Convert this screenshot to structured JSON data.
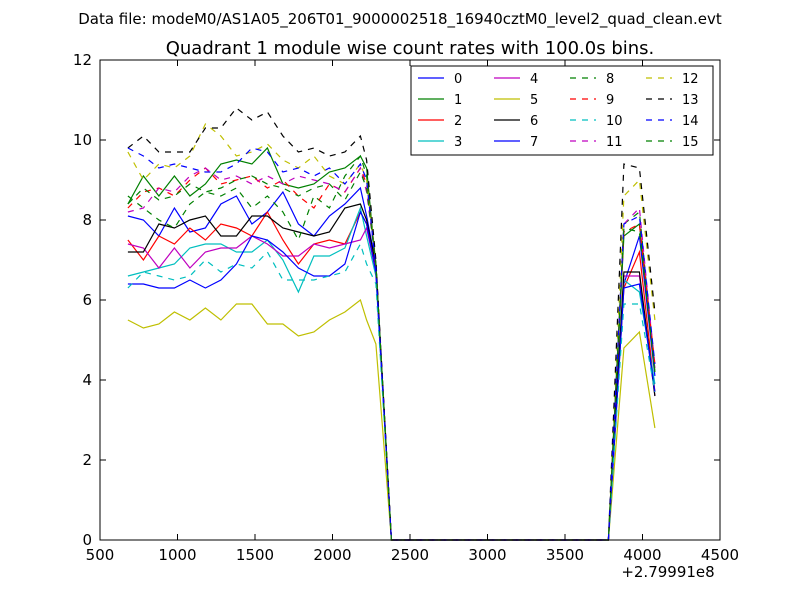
{
  "suptitle": "Data file: modeM0/AS1A05_206T01_9000002518_16940cztM0_level2_quad_clean.evt",
  "chart_data": {
    "type": "line",
    "title": "Quadrant 1 module wise count rates with 100.0s bins.",
    "xlabel": "",
    "ylabel": "",
    "x_offset_label": "+2.79991e8",
    "xlim": [
      500,
      4500
    ],
    "ylim": [
      0,
      12
    ],
    "xticks": [
      500,
      1000,
      1500,
      2000,
      2500,
      3000,
      3500,
      4000,
      4500
    ],
    "yticks": [
      0,
      2,
      4,
      6,
      8,
      10,
      12
    ],
    "x": [
      680,
      780,
      880,
      980,
      1080,
      1180,
      1280,
      1380,
      1480,
      1580,
      1680,
      1780,
      1880,
      1980,
      2080,
      2180,
      2220,
      2280,
      2380,
      2480,
      2580,
      2680,
      2780,
      2880,
      2980,
      3080,
      3180,
      3280,
      3380,
      3480,
      3580,
      3680,
      3780,
      3880,
      3980,
      4080
    ],
    "legend": {
      "location": "upper-right",
      "columns": 4
    },
    "series": [
      {
        "name": "0",
        "color": "#0000ff",
        "dash": "solid",
        "values": [
          8.1,
          8.0,
          7.6,
          8.3,
          7.7,
          7.8,
          8.4,
          8.6,
          7.9,
          8.2,
          8.7,
          7.9,
          7.6,
          8.1,
          8.4,
          8.8,
          8.1,
          6.9,
          0,
          0,
          0,
          0,
          0,
          0,
          0,
          0,
          0,
          0,
          0,
          0,
          0,
          0,
          0,
          6.4,
          7.6,
          4.1
        ]
      },
      {
        "name": "1",
        "color": "#008000",
        "dash": "solid",
        "values": [
          8.4,
          9.1,
          8.6,
          9.1,
          8.6,
          8.9,
          9.4,
          9.5,
          9.4,
          9.8,
          8.9,
          8.8,
          8.9,
          9.2,
          9.3,
          9.6,
          9.3,
          6.8,
          0,
          0,
          0,
          0,
          0,
          0,
          0,
          0,
          0,
          0,
          0,
          0,
          0,
          0,
          0,
          7.6,
          7.9,
          4.2
        ]
      },
      {
        "name": "2",
        "color": "#ff0000",
        "dash": "solid",
        "values": [
          7.5,
          7.0,
          7.6,
          7.4,
          7.8,
          7.5,
          7.9,
          7.8,
          7.6,
          8.2,
          7.5,
          6.9,
          7.4,
          7.5,
          7.4,
          8.2,
          7.9,
          6.8,
          0,
          0,
          0,
          0,
          0,
          0,
          0,
          0,
          0,
          0,
          0,
          0,
          0,
          0,
          0,
          6.3,
          7.2,
          3.7
        ]
      },
      {
        "name": "3",
        "color": "#00bfbf",
        "dash": "solid",
        "values": [
          6.6,
          6.7,
          6.8,
          6.9,
          7.3,
          7.4,
          7.4,
          7.2,
          7.2,
          7.5,
          7.0,
          6.2,
          7.1,
          7.1,
          7.3,
          8.3,
          7.6,
          6.6,
          0,
          0,
          0,
          0,
          0,
          0,
          0,
          0,
          0,
          0,
          0,
          0,
          0,
          0,
          0,
          6.5,
          6.2,
          3.9
        ]
      },
      {
        "name": "4",
        "color": "#bf00bf",
        "dash": "solid",
        "values": [
          7.4,
          7.3,
          6.8,
          7.3,
          6.8,
          7.2,
          7.3,
          7.3,
          7.6,
          7.4,
          7.1,
          7.1,
          7.4,
          7.3,
          7.4,
          7.5,
          7.8,
          6.7,
          0,
          0,
          0,
          0,
          0,
          0,
          0,
          0,
          0,
          0,
          0,
          0,
          0,
          0,
          0,
          6.6,
          6.6,
          3.6
        ]
      },
      {
        "name": "5",
        "color": "#bfbf00",
        "dash": "solid",
        "values": [
          5.5,
          5.3,
          5.4,
          5.7,
          5.5,
          5.8,
          5.5,
          5.9,
          5.9,
          5.4,
          5.4,
          5.1,
          5.2,
          5.5,
          5.7,
          6.0,
          5.5,
          4.9,
          0,
          0,
          0,
          0,
          0,
          0,
          0,
          0,
          0,
          0,
          0,
          0,
          0,
          0,
          0,
          4.8,
          5.2,
          2.8
        ]
      },
      {
        "name": "6",
        "color": "#000000",
        "dash": "solid",
        "values": [
          7.2,
          7.2,
          7.9,
          7.8,
          8.0,
          8.1,
          7.6,
          7.6,
          8.1,
          8.1,
          7.8,
          7.7,
          7.6,
          7.7,
          8.3,
          8.4,
          8.0,
          6.9,
          0,
          0,
          0,
          0,
          0,
          0,
          0,
          0,
          0,
          0,
          0,
          0,
          0,
          0,
          0,
          6.7,
          6.7,
          3.6
        ]
      },
      {
        "name": "7",
        "color": "#0000ff",
        "dash": "solid",
        "values": [
          6.4,
          6.4,
          6.3,
          6.3,
          6.5,
          6.3,
          6.5,
          6.9,
          7.6,
          7.5,
          7.2,
          6.8,
          6.6,
          6.6,
          6.9,
          8.2,
          7.9,
          6.7,
          0,
          0,
          0,
          0,
          0,
          0,
          0,
          0,
          0,
          0,
          0,
          0,
          0,
          0,
          0,
          6.3,
          6.4,
          3.7
        ]
      },
      {
        "name": "8",
        "color": "#008000",
        "dash": "dashed",
        "values": [
          8.6,
          8.3,
          8.0,
          7.8,
          8.4,
          8.7,
          8.6,
          8.8,
          8.3,
          8.6,
          8.2,
          7.5,
          8.6,
          8.3,
          9.1,
          9.6,
          9.1,
          6.9,
          0,
          0,
          0,
          0,
          0,
          0,
          0,
          0,
          0,
          0,
          0,
          0,
          0,
          0,
          0,
          7.9,
          8.2,
          4.2
        ]
      },
      {
        "name": "9",
        "color": "#ff0000",
        "dash": "dashed",
        "values": [
          8.3,
          8.7,
          8.8,
          8.6,
          9.0,
          9.3,
          8.9,
          9.0,
          9.1,
          8.8,
          9.0,
          8.6,
          8.3,
          8.9,
          8.7,
          9.3,
          8.9,
          6.9,
          0,
          0,
          0,
          0,
          0,
          0,
          0,
          0,
          0,
          0,
          0,
          0,
          0,
          0,
          0,
          7.7,
          7.9,
          4.4
        ]
      },
      {
        "name": "10",
        "color": "#00bfbf",
        "dash": "dashed",
        "values": [
          6.3,
          6.7,
          6.6,
          6.5,
          6.6,
          7.0,
          6.7,
          6.9,
          6.8,
          7.2,
          6.5,
          6.5,
          6.5,
          6.6,
          6.7,
          7.4,
          6.9,
          6.4,
          0,
          0,
          0,
          0,
          0,
          0,
          0,
          0,
          0,
          0,
          0,
          0,
          0,
          0,
          0,
          5.9,
          5.9,
          3.7
        ]
      },
      {
        "name": "11",
        "color": "#bf00bf",
        "dash": "dashed",
        "values": [
          8.2,
          8.3,
          8.8,
          8.7,
          9.1,
          9.3,
          9.0,
          9.1,
          8.9,
          9.1,
          8.9,
          9.1,
          9.0,
          8.9,
          8.7,
          9.3,
          8.7,
          6.9,
          0,
          0,
          0,
          0,
          0,
          0,
          0,
          0,
          0,
          0,
          0,
          0,
          0,
          0,
          0,
          7.9,
          8.3,
          4.3
        ]
      },
      {
        "name": "12",
        "color": "#bfbf00",
        "dash": "dashed",
        "values": [
          9.7,
          9.0,
          9.4,
          9.3,
          9.6,
          10.4,
          10.1,
          9.6,
          9.7,
          9.9,
          9.5,
          9.3,
          9.6,
          9.1,
          8.9,
          9.4,
          9.0,
          6.9,
          0,
          0,
          0,
          0,
          0,
          0,
          0,
          0,
          0,
          0,
          0,
          0,
          0,
          0,
          0,
          8.6,
          9.0,
          5.5
        ]
      },
      {
        "name": "13",
        "color": "#000000",
        "dash": "dashed",
        "values": [
          9.8,
          10.1,
          9.7,
          9.7,
          9.7,
          10.3,
          10.3,
          10.8,
          10.5,
          10.7,
          10.1,
          9.7,
          9.8,
          9.6,
          9.7,
          10.1,
          9.5,
          7.0,
          0,
          0,
          0,
          0,
          0,
          0,
          0,
          0,
          0,
          0,
          0,
          0,
          0,
          0,
          0,
          9.4,
          9.3,
          5.7
        ]
      },
      {
        "name": "14",
        "color": "#0000ff",
        "dash": "dashed",
        "values": [
          9.8,
          9.6,
          9.3,
          9.4,
          9.3,
          9.2,
          9.2,
          9.4,
          9.8,
          9.7,
          9.2,
          9.3,
          9.1,
          9.3,
          8.9,
          9.4,
          9.0,
          6.8,
          0,
          0,
          0,
          0,
          0,
          0,
          0,
          0,
          0,
          0,
          0,
          0,
          0,
          0,
          0,
          7.9,
          8.1,
          4.4
        ]
      },
      {
        "name": "15",
        "color": "#008000",
        "dash": "dashed",
        "values": [
          8.4,
          8.8,
          8.5,
          8.6,
          8.9,
          8.7,
          8.8,
          9.0,
          9.1,
          8.9,
          8.8,
          8.6,
          8.8,
          8.9,
          8.5,
          9.2,
          8.8,
          6.9,
          0,
          0,
          0,
          0,
          0,
          0,
          0,
          0,
          0,
          0,
          0,
          0,
          0,
          0,
          0,
          7.8,
          7.7,
          4.2
        ]
      }
    ]
  }
}
